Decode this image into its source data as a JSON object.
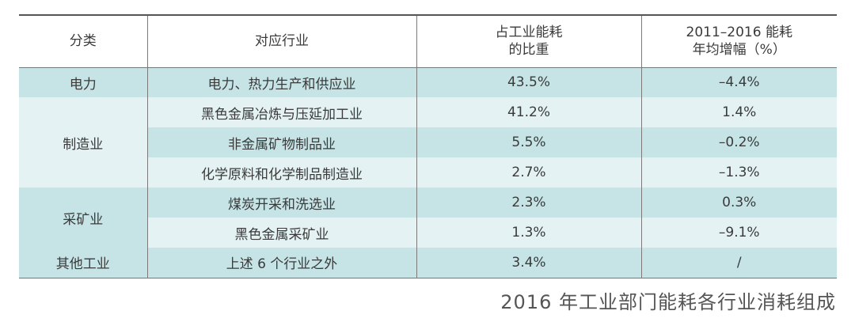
{
  "table": {
    "headers": {
      "category": "分类",
      "industry": "对应行业",
      "share_line1": "占工业能耗",
      "share_line2": "的比重",
      "growth_line1": "2011–2016 能耗",
      "growth_line2": "年均增幅（%）"
    },
    "rows": [
      {
        "category": "电力",
        "industry": "电力、热力生产和供应业",
        "share": "43.5%",
        "growth": "–4.4%"
      },
      {
        "category": "制造业",
        "industry": "黑色金属冶炼与压延加工业",
        "share": "41.2%",
        "growth": "1.4%"
      },
      {
        "category": "",
        "industry": "非金属矿物制品业",
        "share": "5.5%",
        "growth": "–0.2%"
      },
      {
        "category": "",
        "industry": "化学原料和化学制品制造业",
        "share": "2.7%",
        "growth": "–1.3%"
      },
      {
        "category": "采矿业",
        "industry": "煤炭开采和洗选业",
        "share": "2.3%",
        "growth": "0.3%"
      },
      {
        "category": "",
        "industry": "黑色金属采矿业",
        "share": "1.3%",
        "growth": "–9.1%"
      },
      {
        "category": "其他工业",
        "industry": "上述 6 个行业之外",
        "share": "3.4%",
        "growth": "/"
      }
    ]
  },
  "caption": "2016 年工业部门能耗各行业消耗组成",
  "colors": {
    "row_dark": "#c6e4e6",
    "row_light": "#e4f2f3",
    "rule": "#555555"
  }
}
